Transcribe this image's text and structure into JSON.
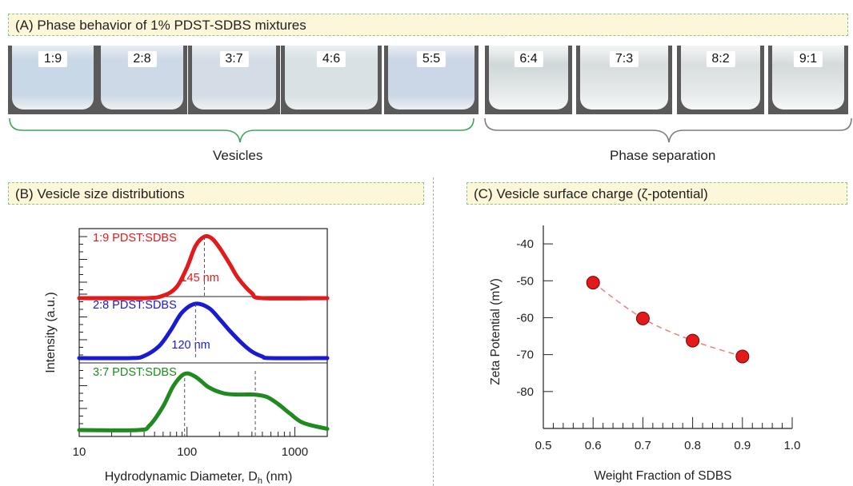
{
  "panel_a": {
    "title": "(A) Phase behavior of 1% PDST-SDBS mixtures",
    "vials": [
      {
        "label": "1:9",
        "state": "turbid",
        "color": "#c9d8e6"
      },
      {
        "label": "2:8",
        "state": "turbid",
        "color": "#cdd9e6"
      },
      {
        "label": "3:7",
        "state": "turbid",
        "color": "#d4dde6"
      },
      {
        "label": "4:6",
        "state": "turbid",
        "color": "#d8e1e4"
      },
      {
        "label": "5:5",
        "state": "turbid",
        "color": "#cbd6e6"
      },
      {
        "label": "6:4",
        "state": "clear",
        "color": "#cfd7d9"
      },
      {
        "label": "7:3",
        "state": "clear",
        "color": "#d7dcdd"
      },
      {
        "label": "8:2",
        "state": "clear",
        "color": "#d9dedf"
      },
      {
        "label": "9:1",
        "state": "clear",
        "color": "#d4d9da"
      }
    ],
    "group_vesicles": "Vesicles",
    "group_separation": "Phase separation",
    "bracket_green": "#3fa65a",
    "bracket_gray": "#7d7d7d"
  },
  "chart_data": [
    {
      "type": "line",
      "title": "(B) Vesicle size distributions",
      "xlabel_main": "Hydrodynamic Diameter, D",
      "xlabel_sub": "h",
      "xlabel_unit": " (nm)",
      "ylabel": "Intensity (a.u.)",
      "x_scale": "log",
      "xlim": [
        10,
        2000
      ],
      "x_ticks": [
        "10",
        "100",
        "1000"
      ],
      "series": [
        {
          "name": "1:9 PDST:SDBS",
          "color": "#e31a1c",
          "peak_label": "145 nm",
          "x": [
            10,
            40,
            60,
            80,
            100,
            120,
            145,
            170,
            200,
            250,
            300,
            400,
            500,
            2000
          ],
          "y": [
            0,
            0,
            0.04,
            0.18,
            0.5,
            0.85,
            1.0,
            0.97,
            0.82,
            0.55,
            0.32,
            0.08,
            0,
            0
          ]
        },
        {
          "name": "2:8 PDST:SDBS",
          "color": "#1a1ad4",
          "peak_label": "120 nm",
          "x": [
            10,
            30,
            40,
            55,
            70,
            90,
            120,
            160,
            200,
            250,
            320,
            400,
            500,
            600,
            2000
          ],
          "y": [
            0,
            0,
            0.04,
            0.22,
            0.5,
            0.84,
            1.0,
            0.92,
            0.72,
            0.5,
            0.28,
            0.12,
            0.03,
            0,
            0
          ]
        },
        {
          "name": "3:7 PDST:SDBS",
          "color": "#1f8a1f",
          "x": [
            10,
            35,
            45,
            60,
            75,
            95,
            120,
            160,
            220,
            300,
            420,
            550,
            700,
            900,
            1200,
            2000
          ],
          "y": [
            0,
            0,
            0.08,
            0.4,
            0.75,
            0.95,
            0.9,
            0.72,
            0.62,
            0.6,
            0.6,
            0.56,
            0.44,
            0.28,
            0.12,
            0.02
          ]
        }
      ],
      "markers_x": [
        145,
        120,
        95,
        430
      ]
    },
    {
      "type": "scatter",
      "title": "(C) Vesicle surface charge (ζ-potential)",
      "xlabel": "Weight Fraction of SDBS",
      "ylabel": "Zeta Potential (mV)",
      "xlim": [
        0.5,
        1.0
      ],
      "ylim": [
        -90,
        -35
      ],
      "x_ticks": [
        "0.5",
        "0.6",
        "0.7",
        "0.8",
        "0.9",
        "1.0"
      ],
      "y_ticks": [
        "-80",
        "-70",
        "-60",
        "-50",
        "-40"
      ],
      "x": [
        0.6,
        0.7,
        0.8,
        0.9
      ],
      "y": [
        -50.5,
        -60.2,
        -66.2,
        -70.5
      ],
      "marker_color": "#e31a1c",
      "line_color": "#f08080"
    }
  ]
}
